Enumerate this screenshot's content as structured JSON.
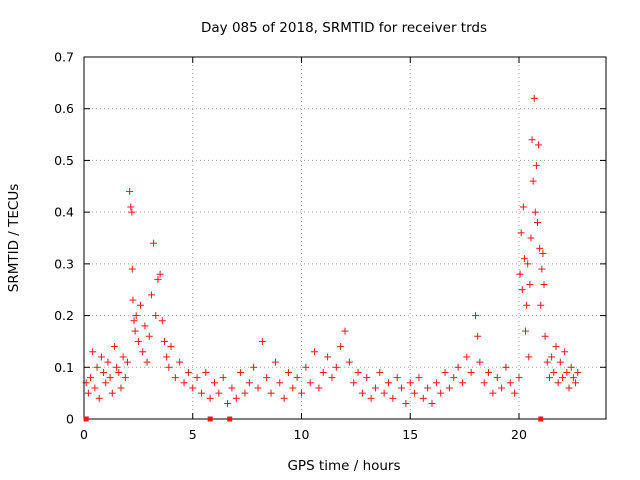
{
  "chart_data": {
    "type": "scatter",
    "title": "Day 085 of 2018, SRMTID for receiver trds",
    "xlabel": "GPS time / hours",
    "ylabel": "SRMTID / TECUs",
    "xlim": [
      0,
      24
    ],
    "ylim": [
      0,
      0.7
    ],
    "x_ticks": [
      0,
      5,
      10,
      15,
      20
    ],
    "x_tick_labels": [
      "0",
      "5",
      "10",
      "15",
      "20"
    ],
    "y_ticks": [
      0,
      0.1,
      0.2,
      0.3,
      0.4,
      0.5,
      0.6,
      0.7
    ],
    "y_tick_labels": [
      "0",
      "0.1",
      "0.2",
      "0.3",
      "0.4",
      "0.5",
      "0.6",
      "0.7"
    ],
    "grid": true,
    "marker": "plus",
    "colors": {
      "series": "#e41a1c",
      "grid": "#a0a0a0",
      "axis": "#000000"
    },
    "series": [
      {
        "name": "SRMTID",
        "points": [
          [
            0.1,
            0.07
          ],
          [
            0.2,
            0.05
          ],
          [
            0.3,
            0.08
          ],
          [
            0.4,
            0.13
          ],
          [
            0.5,
            0.06
          ],
          [
            0.6,
            0.1
          ],
          [
            0.7,
            0.04
          ],
          [
            0.8,
            0.12
          ],
          [
            0.9,
            0.09
          ],
          [
            1.0,
            0.07
          ],
          [
            1.1,
            0.11
          ],
          [
            1.2,
            0.08
          ],
          [
            1.3,
            0.05
          ],
          [
            1.4,
            0.14
          ],
          [
            1.5,
            0.1
          ],
          [
            1.6,
            0.09
          ],
          [
            1.7,
            0.06
          ],
          [
            1.8,
            0.12
          ],
          [
            1.9,
            0.08
          ],
          [
            2.0,
            0.11
          ],
          [
            2.1,
            0.44
          ],
          [
            2.15,
            0.41
          ],
          [
            2.2,
            0.4
          ],
          [
            2.22,
            0.29
          ],
          [
            2.25,
            0.23
          ],
          [
            2.3,
            0.19
          ],
          [
            2.35,
            0.17
          ],
          [
            2.4,
            0.2
          ],
          [
            2.5,
            0.15
          ],
          [
            2.6,
            0.22
          ],
          [
            2.7,
            0.13
          ],
          [
            2.8,
            0.18
          ],
          [
            2.9,
            0.11
          ],
          [
            3.0,
            0.16
          ],
          [
            3.1,
            0.24
          ],
          [
            3.2,
            0.34
          ],
          [
            3.3,
            0.2
          ],
          [
            3.4,
            0.27
          ],
          [
            3.5,
            0.28
          ],
          [
            3.6,
            0.19
          ],
          [
            3.7,
            0.15
          ],
          [
            3.8,
            0.12
          ],
          [
            3.9,
            0.1
          ],
          [
            4.0,
            0.14
          ],
          [
            4.2,
            0.08
          ],
          [
            4.4,
            0.11
          ],
          [
            4.6,
            0.07
          ],
          [
            4.8,
            0.09
          ],
          [
            5.0,
            0.06
          ],
          [
            5.2,
            0.08
          ],
          [
            5.4,
            0.05
          ],
          [
            5.6,
            0.09
          ],
          [
            5.8,
            0.04
          ],
          [
            6.0,
            0.07
          ],
          [
            6.2,
            0.05
          ],
          [
            6.4,
            0.08
          ],
          [
            6.6,
            0.03
          ],
          [
            6.8,
            0.06
          ],
          [
            7.0,
            0.04
          ],
          [
            7.2,
            0.09
          ],
          [
            7.4,
            0.05
          ],
          [
            7.6,
            0.07
          ],
          [
            7.8,
            0.1
          ],
          [
            8.0,
            0.06
          ],
          [
            8.2,
            0.15
          ],
          [
            8.4,
            0.08
          ],
          [
            8.6,
            0.05
          ],
          [
            8.8,
            0.11
          ],
          [
            9.0,
            0.07
          ],
          [
            9.2,
            0.04
          ],
          [
            9.4,
            0.09
          ],
          [
            9.6,
            0.06
          ],
          [
            9.8,
            0.08
          ],
          [
            10.0,
            0.05
          ],
          [
            10.2,
            0.1
          ],
          [
            10.4,
            0.07
          ],
          [
            10.6,
            0.13
          ],
          [
            10.8,
            0.06
          ],
          [
            11.0,
            0.09
          ],
          [
            11.2,
            0.12
          ],
          [
            11.4,
            0.08
          ],
          [
            11.6,
            0.1
          ],
          [
            11.8,
            0.14
          ],
          [
            12.0,
            0.17
          ],
          [
            12.2,
            0.11
          ],
          [
            12.4,
            0.07
          ],
          [
            12.6,
            0.09
          ],
          [
            12.8,
            0.05
          ],
          [
            13.0,
            0.08
          ],
          [
            13.2,
            0.04
          ],
          [
            13.4,
            0.06
          ],
          [
            13.6,
            0.09
          ],
          [
            13.8,
            0.05
          ],
          [
            14.0,
            0.07
          ],
          [
            14.2,
            0.04
          ],
          [
            14.4,
            0.08
          ],
          [
            14.6,
            0.06
          ],
          [
            14.8,
            0.03
          ],
          [
            15.0,
            0.07
          ],
          [
            15.2,
            0.05
          ],
          [
            15.4,
            0.08
          ],
          [
            15.6,
            0.04
          ],
          [
            15.8,
            0.06
          ],
          [
            16.0,
            0.03
          ],
          [
            16.2,
            0.07
          ],
          [
            16.4,
            0.05
          ],
          [
            16.6,
            0.09
          ],
          [
            16.8,
            0.06
          ],
          [
            17.0,
            0.08
          ],
          [
            17.2,
            0.1
          ],
          [
            17.4,
            0.07
          ],
          [
            17.6,
            0.12
          ],
          [
            17.8,
            0.09
          ],
          [
            18.0,
            0.2
          ],
          [
            18.1,
            0.16
          ],
          [
            18.2,
            0.11
          ],
          [
            18.4,
            0.07
          ],
          [
            18.6,
            0.09
          ],
          [
            18.8,
            0.05
          ],
          [
            19.0,
            0.08
          ],
          [
            19.2,
            0.06
          ],
          [
            19.4,
            0.1
          ],
          [
            19.6,
            0.07
          ],
          [
            19.8,
            0.05
          ],
          [
            20.0,
            0.08
          ],
          [
            20.05,
            0.28
          ],
          [
            20.1,
            0.36
          ],
          [
            20.15,
            0.25
          ],
          [
            20.2,
            0.41
          ],
          [
            20.25,
            0.31
          ],
          [
            20.3,
            0.17
          ],
          [
            20.35,
            0.22
          ],
          [
            20.4,
            0.3
          ],
          [
            20.45,
            0.12
          ],
          [
            20.5,
            0.26
          ],
          [
            20.55,
            0.35
          ],
          [
            20.6,
            0.54
          ],
          [
            20.65,
            0.46
          ],
          [
            20.7,
            0.62
          ],
          [
            20.75,
            0.4
          ],
          [
            20.8,
            0.49
          ],
          [
            20.85,
            0.38
          ],
          [
            20.9,
            0.53
          ],
          [
            20.95,
            0.33
          ],
          [
            21.0,
            0.22
          ],
          [
            21.05,
            0.29
          ],
          [
            21.1,
            0.32
          ],
          [
            21.15,
            0.26
          ],
          [
            21.2,
            0.16
          ],
          [
            21.3,
            0.11
          ],
          [
            21.4,
            0.08
          ],
          [
            21.5,
            0.12
          ],
          [
            21.6,
            0.09
          ],
          [
            21.7,
            0.14
          ],
          [
            21.8,
            0.07
          ],
          [
            21.9,
            0.11
          ],
          [
            22.0,
            0.08
          ],
          [
            22.1,
            0.13
          ],
          [
            22.2,
            0.09
          ],
          [
            22.3,
            0.06
          ],
          [
            22.4,
            0.1
          ],
          [
            22.5,
            0.08
          ],
          [
            22.6,
            0.07
          ],
          [
            22.7,
            0.09
          ]
        ]
      }
    ],
    "axis_markers_x": [
      0.1,
      5.8,
      6.7,
      21.0
    ]
  }
}
